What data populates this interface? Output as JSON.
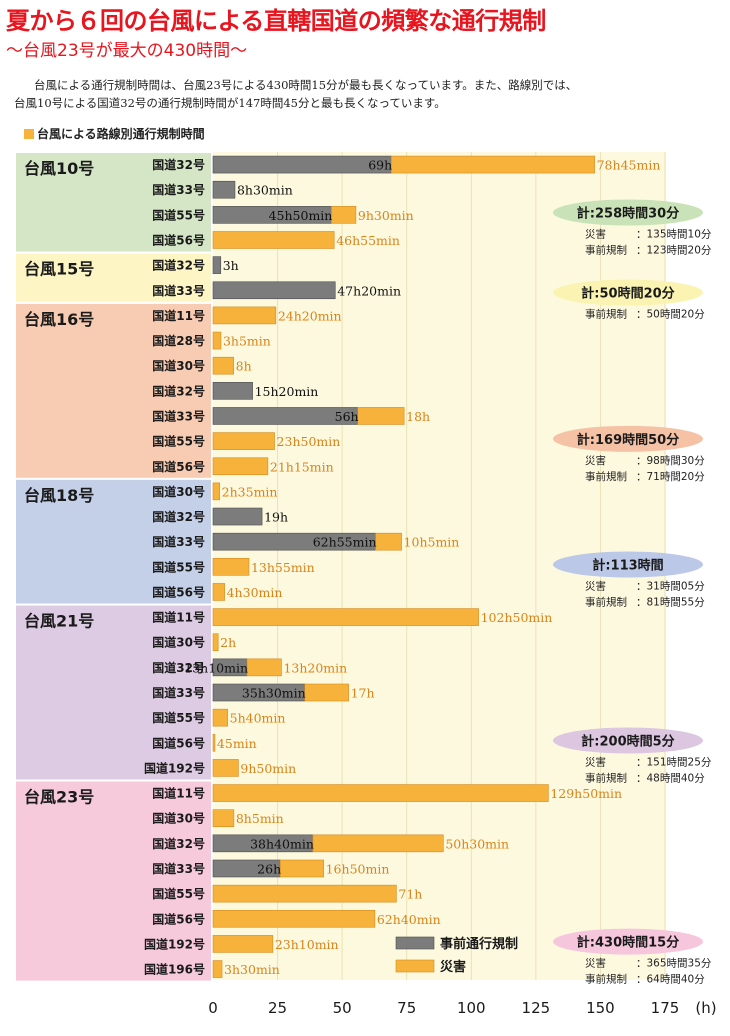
{
  "title": "夏から６回の台風による直轄国道の頻繁な通行規制",
  "subtitle": "～台風23号が最大の430時間～",
  "description": [
    "台風による通行規制時間は、台風23号による430時間15分が最も長くなっています。また、路線別では、",
    "台風10号による国道32号の通行規制時間が147時間45分と最も長くなっています。"
  ],
  "legend_title": "台風による路線別通行規制時間",
  "legend": {
    "pre": "事前通行規制",
    "disaster": "災害"
  },
  "colors": {
    "pre": "#7c7c7c",
    "disaster": "#f7b23b",
    "plot_bg": "#fdf9df",
    "text_orange": "#d9841a",
    "title": "#e8141e"
  },
  "chart_data": {
    "type": "bar",
    "orientation": "horizontal",
    "stacked": true,
    "xlabel": "(h)",
    "xlim": [
      0,
      175
    ],
    "xticks": [
      0,
      25,
      50,
      75,
      100,
      125,
      150,
      175
    ],
    "series": [
      {
        "name": "事前通行規制",
        "key": "pre"
      },
      {
        "name": "災害",
        "key": "disaster"
      }
    ],
    "groups": [
      {
        "name": "台風10号",
        "color": "#d5e6c7",
        "rows": [
          {
            "road": "国道32号",
            "pre": 69,
            "pre_label": "69h",
            "disaster": 78.75,
            "disaster_label": "78h45min"
          },
          {
            "road": "国道33号",
            "pre": 8.5,
            "pre_label": "8h30min",
            "disaster": 0,
            "disaster_label": ""
          },
          {
            "road": "国道55号",
            "pre": 45.83,
            "pre_label": "45h50min",
            "disaster": 9.5,
            "disaster_label": "9h30min"
          },
          {
            "road": "国道56号",
            "pre": 0,
            "pre_label": "",
            "disaster": 46.92,
            "disaster_label": "46h55min"
          }
        ],
        "total": "計:258時間30分",
        "total_color": "#c9e2b8",
        "breakdown": [
          [
            "災害",
            "：135時間10分"
          ],
          [
            "事前規制",
            "：123時間20分"
          ]
        ]
      },
      {
        "name": "台風15号",
        "color": "#fdf6c4",
        "rows": [
          {
            "road": "国道32号",
            "pre": 3,
            "pre_label": "3h",
            "disaster": 0,
            "disaster_label": ""
          },
          {
            "road": "国道33号",
            "pre": 47.33,
            "pre_label": "47h20min",
            "disaster": 0,
            "disaster_label": ""
          }
        ],
        "total": "計:50時間20分",
        "total_color": "#fbf3b2",
        "breakdown": [
          [
            "事前規制",
            "：50時間20分"
          ]
        ]
      },
      {
        "name": "台風16号",
        "color": "#f8ccb3",
        "rows": [
          {
            "road": "国道11号",
            "pre": 0,
            "pre_label": "",
            "disaster": 24.33,
            "disaster_label": "24h20min"
          },
          {
            "road": "国道28号",
            "pre": 0,
            "pre_label": "",
            "disaster": 3.08,
            "disaster_label": "3h5min"
          },
          {
            "road": "国道30号",
            "pre": 0,
            "pre_label": "",
            "disaster": 8,
            "disaster_label": "8h"
          },
          {
            "road": "国道32号",
            "pre": 15.33,
            "pre_label": "15h20min",
            "disaster": 0,
            "disaster_label": ""
          },
          {
            "road": "国道33号",
            "pre": 56,
            "pre_label": "56h",
            "disaster": 18,
            "disaster_label": "18h"
          },
          {
            "road": "国道55号",
            "pre": 0,
            "pre_label": "",
            "disaster": 23.83,
            "disaster_label": "23h50min"
          },
          {
            "road": "国道56号",
            "pre": 0,
            "pre_label": "",
            "disaster": 21.25,
            "disaster_label": "21h15min"
          }
        ],
        "total": "計:169時間50分",
        "total_color": "#f6c2a6",
        "breakdown": [
          [
            "災害",
            "：98時間30分"
          ],
          [
            "事前規制",
            "：71時間20分"
          ]
        ]
      },
      {
        "name": "台風18号",
        "color": "#c4cfe8",
        "rows": [
          {
            "road": "国道30号",
            "pre": 0,
            "pre_label": "",
            "disaster": 2.58,
            "disaster_label": "2h35min"
          },
          {
            "road": "国道32号",
            "pre": 19,
            "pre_label": "19h",
            "disaster": 0,
            "disaster_label": ""
          },
          {
            "road": "国道33号",
            "pre": 62.92,
            "pre_label": "62h55min",
            "disaster": 10.08,
            "disaster_label": "10h5min"
          },
          {
            "road": "国道55号",
            "pre": 0,
            "pre_label": "",
            "disaster": 13.92,
            "disaster_label": "13h55min"
          },
          {
            "road": "国道56号",
            "pre": 0,
            "pre_label": "",
            "disaster": 4.5,
            "disaster_label": "4h30min"
          }
        ],
        "total": "計:113時間",
        "total_color": "#bcc8e8",
        "breakdown": [
          [
            "災害",
            "：31時間05分"
          ],
          [
            "事前規制",
            "：81時間55分"
          ]
        ]
      },
      {
        "name": "台風21号",
        "color": "#dccbe2",
        "rows": [
          {
            "road": "国道11号",
            "pre": 0,
            "pre_label": "",
            "disaster": 102.83,
            "disaster_label": "102h50min"
          },
          {
            "road": "国道30号",
            "pre": 0,
            "pre_label": "",
            "disaster": 2,
            "disaster_label": "2h"
          },
          {
            "road": "国道32号",
            "pre": 13.17,
            "pre_label": "13h10min",
            "disaster": 13.33,
            "disaster_label": "13h20min"
          },
          {
            "road": "国道33号",
            "pre": 35.5,
            "pre_label": "35h30min",
            "disaster": 17,
            "disaster_label": "17h"
          },
          {
            "road": "国道55号",
            "pre": 0,
            "pre_label": "",
            "disaster": 5.67,
            "disaster_label": "5h40min"
          },
          {
            "road": "国道56号",
            "pre": 0,
            "pre_label": "",
            "disaster": 0.75,
            "disaster_label": "45min"
          },
          {
            "road": "国道192号",
            "pre": 0,
            "pre_label": "",
            "disaster": 9.83,
            "disaster_label": "9h50min"
          }
        ],
        "total": "計:200時間5分",
        "total_color": "#dcc6e0",
        "breakdown": [
          [
            "災害",
            "：151時間25分"
          ],
          [
            "事前規制",
            "：48時間40分"
          ]
        ]
      },
      {
        "name": "台風23号",
        "color": "#f6cadb",
        "rows": [
          {
            "road": "国道11号",
            "pre": 0,
            "pre_label": "",
            "disaster": 129.83,
            "disaster_label": "129h50min"
          },
          {
            "road": "国道30号",
            "pre": 0,
            "pre_label": "",
            "disaster": 8.08,
            "disaster_label": "8h5min"
          },
          {
            "road": "国道32号",
            "pre": 38.67,
            "pre_label": "38h40min",
            "disaster": 50.5,
            "disaster_label": "50h30min"
          },
          {
            "road": "国道33号",
            "pre": 26,
            "pre_label": "26h",
            "disaster": 16.83,
            "disaster_label": "16h50min"
          },
          {
            "road": "国道55号",
            "pre": 0,
            "pre_label": "",
            "disaster": 71,
            "disaster_label": "71h"
          },
          {
            "road": "国道56号",
            "pre": 0,
            "pre_label": "",
            "disaster": 62.67,
            "disaster_label": "62h40min"
          },
          {
            "road": "国道192号",
            "pre": 0,
            "pre_label": "",
            "disaster": 23.17,
            "disaster_label": "23h10min"
          },
          {
            "road": "国道196号",
            "pre": 0,
            "pre_label": "",
            "disaster": 3.5,
            "disaster_label": "3h30min"
          }
        ],
        "total": "計:430時間15分",
        "total_color": "#f6c6dc",
        "breakdown": [
          [
            "災害",
            "：365時間35分"
          ],
          [
            "事前規制",
            "：64時間40分"
          ]
        ]
      }
    ]
  }
}
